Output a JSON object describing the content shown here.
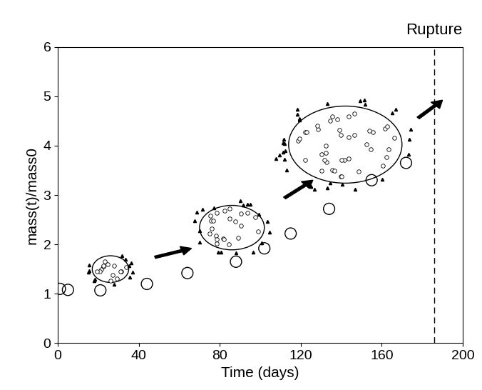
{
  "chart_data": {
    "type": "scatter",
    "x_label": "Time (days)",
    "y_label": "mass(t)/mass0",
    "x": [
      1,
      5,
      21,
      44,
      64,
      88,
      102,
      115,
      134,
      155,
      172
    ],
    "values": [
      1.1,
      1.08,
      1.07,
      1.2,
      1.42,
      1.65,
      1.92,
      2.22,
      2.72,
      3.3,
      3.65
    ],
    "marker": "o",
    "color": "#000000",
    "xlim": [
      0,
      200
    ],
    "xticks": [
      0,
      40,
      80,
      120,
      160,
      200
    ],
    "ylim": [
      0,
      6
    ],
    "yticks": [
      0,
      1,
      2,
      3,
      4,
      5,
      6
    ],
    "grid": false,
    "rupture": {
      "label": "Rupture",
      "x": 186
    }
  }
}
